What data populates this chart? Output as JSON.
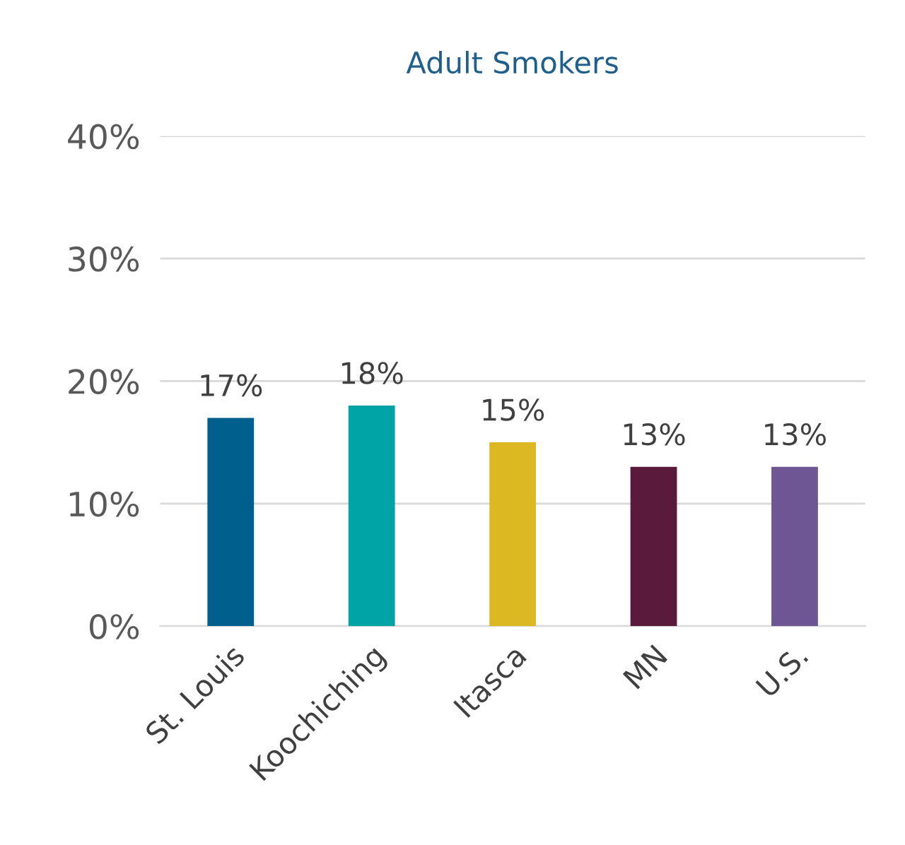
{
  "chart_data": {
    "type": "bar",
    "title": "Adult Smokers",
    "categories": [
      "St. Louis",
      "Koochiching",
      "Itasca",
      "MN",
      "U.S."
    ],
    "values": [
      17,
      18,
      15,
      13,
      13
    ],
    "colors": [
      "#005f8c",
      "#00a3a6",
      "#dcb823",
      "#5a1a3c",
      "#6e5694"
    ],
    "value_labels": [
      "17%",
      "18%",
      "15%",
      "13%",
      "13%"
    ],
    "ylim": [
      0,
      40
    ],
    "yticks": [
      {
        "value": 0,
        "label": "0%"
      },
      {
        "value": 10,
        "label": "10%"
      },
      {
        "value": 20,
        "label": "20%"
      },
      {
        "value": 30,
        "label": "30%"
      },
      {
        "value": 40,
        "label": "40%"
      }
    ],
    "grid": "y",
    "legend": false
  }
}
